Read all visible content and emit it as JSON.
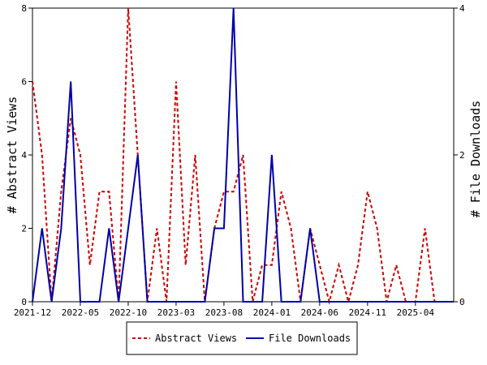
{
  "chart_data": {
    "type": "line",
    "x": [
      "2021-12",
      "2022-01",
      "2022-02",
      "2022-03",
      "2022-04",
      "2022-05",
      "2022-06",
      "2022-07",
      "2022-08",
      "2022-09",
      "2022-10",
      "2022-11",
      "2022-12",
      "2023-01",
      "2023-02",
      "2023-03",
      "2023-04",
      "2023-05",
      "2023-06",
      "2023-07",
      "2023-08",
      "2023-09",
      "2023-10",
      "2023-11",
      "2023-12",
      "2024-01",
      "2024-02",
      "2024-03",
      "2024-04",
      "2024-05",
      "2024-06",
      "2024-07",
      "2024-08",
      "2024-09",
      "2024-10",
      "2024-11",
      "2024-12",
      "2025-01",
      "2025-02",
      "2025-03",
      "2025-04",
      "2025-05",
      "2025-06",
      "2025-07",
      "2025-08"
    ],
    "x_tick_labels": [
      "2021-12",
      "2022-05",
      "2022-10",
      "2023-03",
      "2023-08",
      "2024-01",
      "2024-06",
      "2024-11",
      "2025-04"
    ],
    "x_tick_indices": [
      0,
      5,
      10,
      15,
      20,
      25,
      30,
      35,
      40
    ],
    "y_left": {
      "label": "# Abstract Views",
      "range": [
        0,
        8
      ],
      "ticks": [
        "0",
        "2",
        "4",
        "6",
        "8"
      ]
    },
    "y_right": {
      "label": "# File Downloads",
      "range": [
        0,
        4
      ],
      "ticks": [
        "0",
        "2",
        "4"
      ]
    },
    "series": [
      {
        "name": "Abstract Views",
        "axis": "left",
        "color": "#cc0000",
        "style": "dashed",
        "values": [
          6,
          4,
          0,
          3,
          5,
          4,
          1,
          3,
          3,
          0,
          8,
          4,
          0,
          2,
          0,
          6,
          1,
          4,
          0,
          2,
          3,
          3,
          4,
          0,
          1,
          1,
          3,
          2,
          0,
          2,
          1,
          0,
          1,
          0,
          1,
          3,
          2,
          0,
          1,
          0,
          0,
          2,
          0,
          0,
          0
        ]
      },
      {
        "name": "File Downloads",
        "axis": "right",
        "color": "#0000aa",
        "style": "solid",
        "values": [
          0,
          1,
          0,
          1,
          3,
          0,
          0,
          0,
          1,
          0,
          1,
          2,
          0,
          0,
          0,
          0,
          0,
          0,
          0,
          1,
          1,
          4,
          0,
          0,
          0,
          2,
          0,
          0,
          0,
          1,
          0,
          0,
          0,
          0,
          0,
          0,
          0,
          0,
          0,
          0,
          0,
          0,
          0,
          0,
          0
        ]
      }
    ],
    "legend": {
      "placement": "bottom"
    },
    "grid": false
  }
}
